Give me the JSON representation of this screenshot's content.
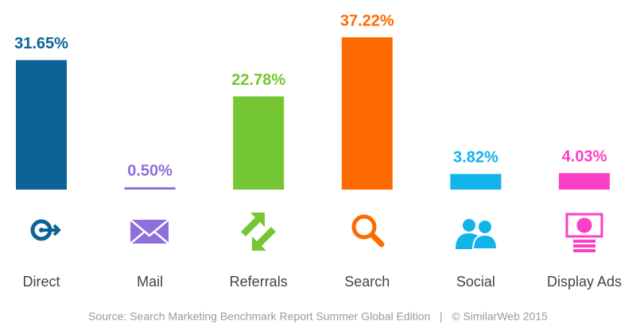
{
  "chart_data": {
    "type": "bar",
    "categories": [
      "Direct",
      "Mail",
      "Referrals",
      "Search",
      "Social",
      "Display Ads"
    ],
    "values": [
      31.65,
      0.5,
      22.78,
      37.22,
      3.82,
      4.03
    ],
    "value_labels": [
      "31.65%",
      "0.50%",
      "22.78%",
      "37.22%",
      "3.82%",
      "4.03%"
    ],
    "colors": [
      "#0b6396",
      "#8e6fdb",
      "#74c732",
      "#ff6a00",
      "#12b3ea",
      "#fb3fc6"
    ],
    "source": "Source: Search Marketing Benchmark Report Summer Global Edition   |   © SimilarWeb 2015"
  }
}
